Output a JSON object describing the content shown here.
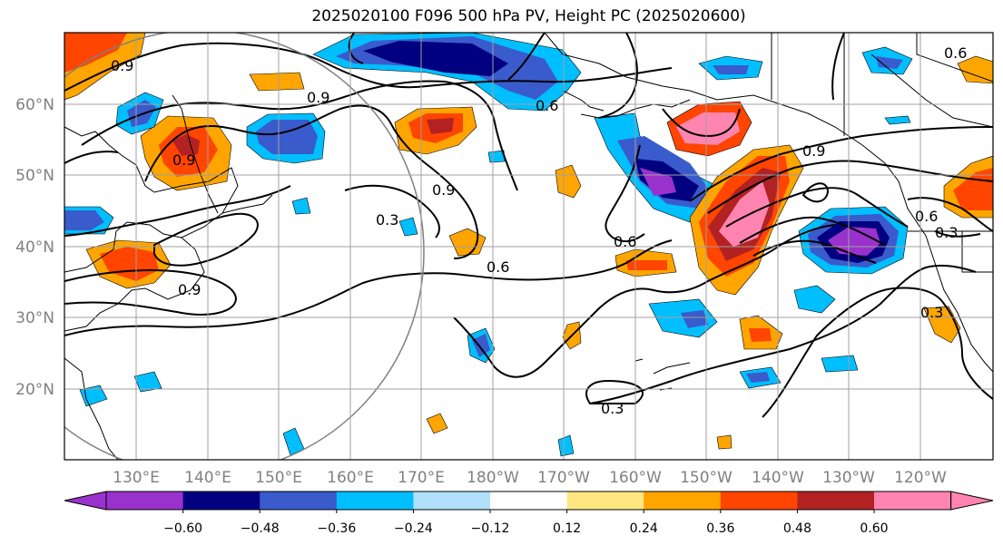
{
  "title": "2025020100 F096 500 hPa PV, Height PC (2025020600)",
  "lat_labels": [
    "60°N",
    "50°N",
    "40°N",
    "30°N",
    "20°N"
  ],
  "lon_labels": [
    "130°E",
    "140°E",
    "150°E",
    "160°E",
    "170°E",
    "180°W",
    "170°W",
    "160°W",
    "150°W",
    "140°W",
    "130°W",
    "120°W"
  ],
  "contour_labels": [
    "0.9",
    "0.9",
    "0.9",
    "0.9",
    "0.6",
    "0.9",
    "0.3",
    "0.6",
    "0.6",
    "0.9",
    "0.3",
    "0.6",
    "0.3",
    "0.3",
    "0.6"
  ],
  "colorbar": {
    "colors": [
      "#9932CC",
      "#000080",
      "#3A5BCB",
      "#00BFFF",
      "#B0E0FA",
      "#FFFFFF",
      "#FFE680",
      "#FFA500",
      "#FF4500",
      "#B22222",
      "#FF85B0"
    ],
    "tick_labels": [
      "−0.60",
      "−0.48",
      "−0.36",
      "−0.24",
      "−0.12",
      "0.12",
      "0.24",
      "0.36",
      "0.48",
      "0.60"
    ]
  }
}
